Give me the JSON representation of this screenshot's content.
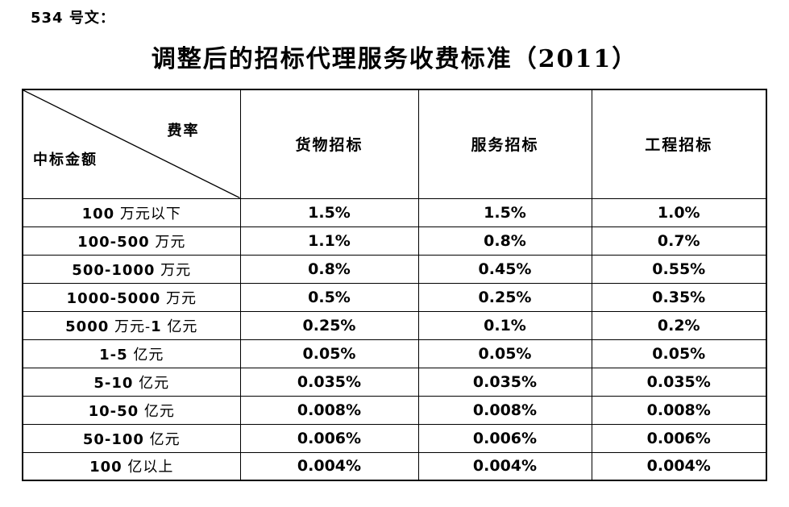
{
  "doc_label": "534 号文：",
  "title": "调整后的招标代理服务收费标准（2011）",
  "table": {
    "corner": {
      "top_right": "费率",
      "bottom_left": "中标金额"
    },
    "columns": [
      "货物招标",
      "服务招标",
      "工程招标"
    ],
    "rows": [
      {
        "label": "100 万元以下",
        "values": [
          "1.5%",
          "1.5%",
          "1.0%"
        ]
      },
      {
        "label": "100-500 万元",
        "values": [
          "1.1%",
          "0.8%",
          "0.7%"
        ]
      },
      {
        "label": "500-1000 万元",
        "values": [
          "0.8%",
          "0.45%",
          "0.55%"
        ]
      },
      {
        "label": "1000-5000 万元",
        "values": [
          "0.5%",
          "0.25%",
          "0.35%"
        ]
      },
      {
        "label": "5000 万元-1 亿元",
        "values": [
          "0.25%",
          "0.1%",
          "0.2%"
        ]
      },
      {
        "label": "1-5 亿元",
        "values": [
          "0.05%",
          "0.05%",
          "0.05%"
        ]
      },
      {
        "label": "5-10 亿元",
        "values": [
          "0.035%",
          "0.035%",
          "0.035%"
        ]
      },
      {
        "label": "10-50 亿元",
        "values": [
          "0.008%",
          "0.008%",
          "0.008%"
        ]
      },
      {
        "label": "50-100 亿元",
        "values": [
          "0.006%",
          "0.006%",
          "0.006%"
        ]
      },
      {
        "label": "100 亿以上",
        "values": [
          "0.004%",
          "0.004%",
          "0.004%"
        ]
      }
    ],
    "border_color": "#000000",
    "text_color": "#000000",
    "background_color": "#ffffff"
  }
}
